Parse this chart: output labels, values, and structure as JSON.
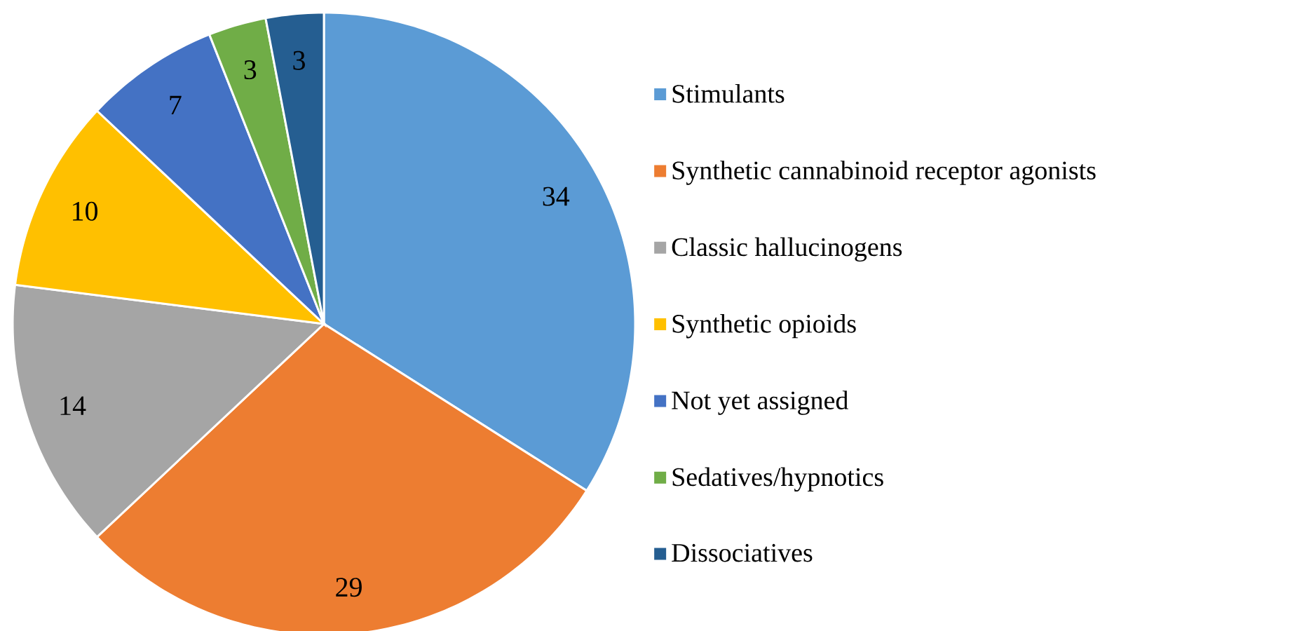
{
  "chart_data": {
    "type": "pie",
    "categories": [
      "Stimulants",
      "Synthetic cannabinoid receptor agonists",
      "Classic hallucinogens",
      "Synthetic opioids",
      "Not yet assigned",
      "Sedatives/hypnotics",
      "Dissociatives"
    ],
    "values": [
      34,
      29,
      14,
      10,
      7,
      3,
      3
    ],
    "colors": [
      "#5b9bd5",
      "#ed7d31",
      "#a5a5a5",
      "#ffc000",
      "#4472c4",
      "#70ad47",
      "#255e91"
    ],
    "data_labels": true,
    "legend": "right"
  }
}
